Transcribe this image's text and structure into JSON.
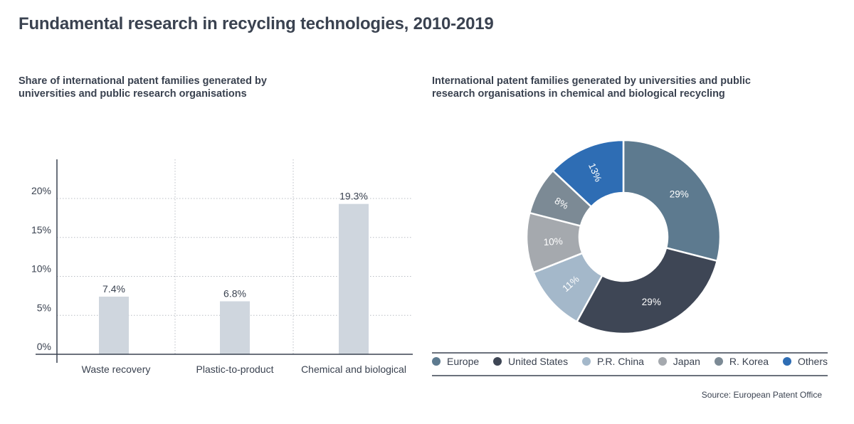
{
  "title": "Fundamental research in recycling technologies, 2010-2019",
  "source": "Source: European Patent Office",
  "chart_data": [
    {
      "type": "bar",
      "title": "Share of international patent families generated by universities and public research organisations",
      "categories": [
        "Waste recovery",
        "Plastic-to-product",
        "Chemical and biological"
      ],
      "values": [
        7.4,
        6.8,
        19.3
      ],
      "data_labels": [
        "7.4%",
        "6.8%",
        "19.3%"
      ],
      "ylim": [
        0,
        25
      ],
      "yticks": [
        0,
        5,
        10,
        15,
        20
      ],
      "ytick_labels": [
        "0%",
        "5%",
        "10%",
        "15%",
        "20%"
      ],
      "xlabel": "",
      "ylabel": "",
      "grid": true,
      "bar_color": "#cfd6de"
    },
    {
      "type": "pie",
      "title": "International patent families generated by universities and public research organisations in chemical and biological recycling",
      "categories": [
        "Europe",
        "United States",
        "P.R. China",
        "Japan",
        "R. Korea",
        "Others"
      ],
      "values": [
        29,
        29,
        11,
        10,
        8,
        13
      ],
      "data_labels": [
        "29%",
        "29%",
        "11%",
        "10%",
        "8%",
        "13%"
      ],
      "colors": [
        "#5d7a8f",
        "#3e4655",
        "#a4b8ca",
        "#a5a9ae",
        "#7c8a95",
        "#2e6db4"
      ],
      "legend": "bottom"
    }
  ]
}
